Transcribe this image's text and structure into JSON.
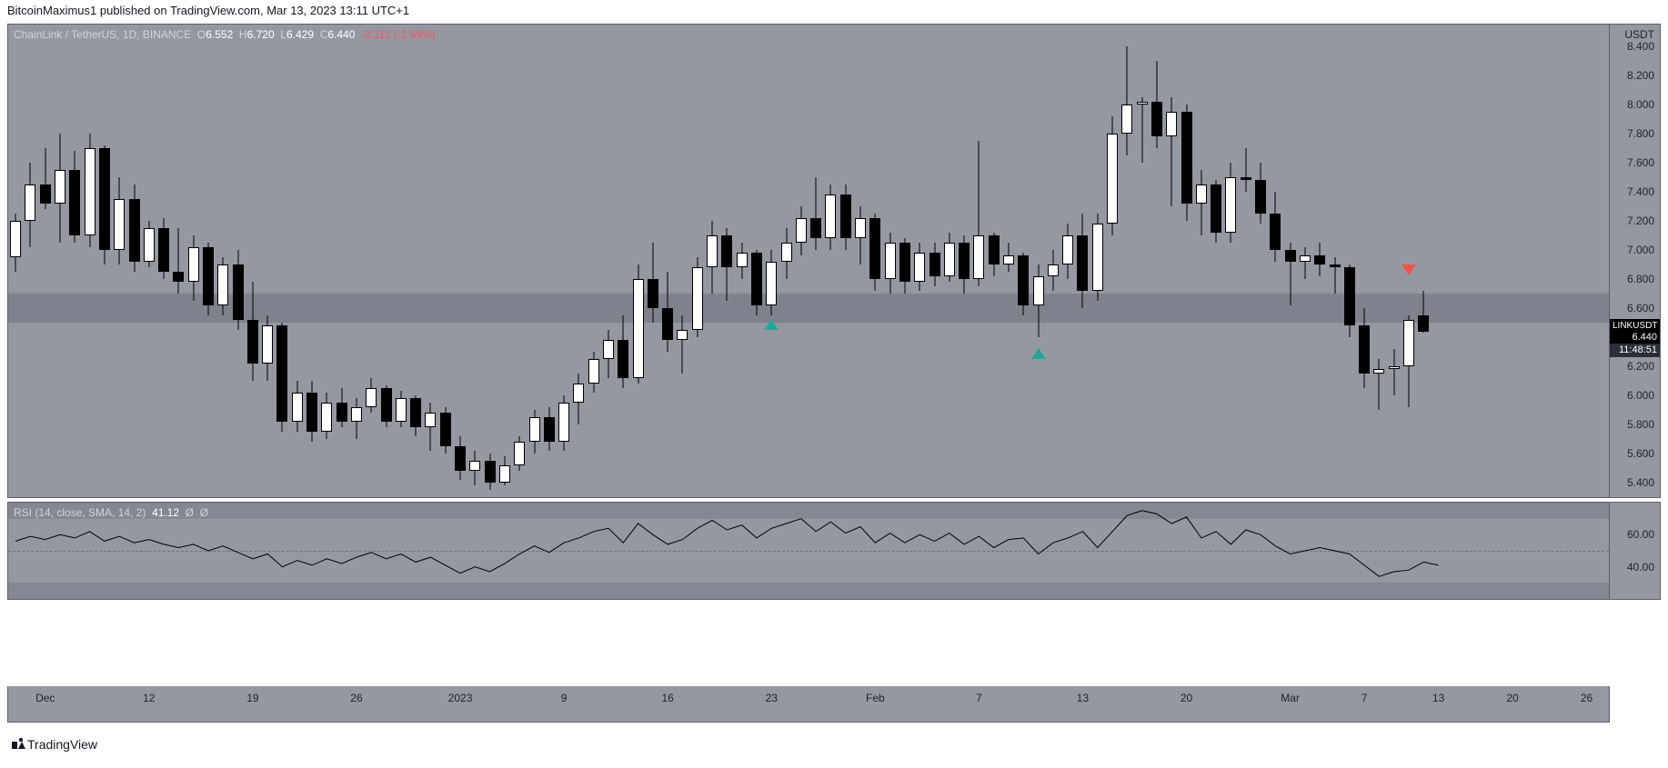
{
  "publish": {
    "text": "BitcoinMaximus1 published on TradingView.com, Mar 13, 2023 13:11 UTC+1"
  },
  "footer": {
    "brand": "TradingView"
  },
  "price_chart": {
    "type": "candlestick",
    "legend": {
      "symbol": "ChainLink / TetherUS, 1D, BINANCE",
      "o_label": "O",
      "o": "6.552",
      "h_label": "H",
      "h": "6.720",
      "l_label": "L",
      "l": "6.429",
      "c_label": "C",
      "c": "6.440",
      "change": "-0.111 (-1.69%)"
    },
    "y_unit": "USDT",
    "ymin": 5.3,
    "ymax": 8.55,
    "yticks": [
      8.4,
      8.2,
      8.0,
      7.8,
      7.6,
      7.4,
      7.2,
      7.0,
      6.8,
      6.6,
      6.4,
      6.2,
      6.0,
      5.8,
      5.6,
      5.4
    ],
    "sr_band": {
      "low": 6.5,
      "high": 6.7
    },
    "last_tag": {
      "symbol": "LINKUSDT",
      "price": "6.440",
      "countdown": "11:48:51",
      "at": 6.44
    },
    "xticks": [
      {
        "i": 2,
        "label": "Dec"
      },
      {
        "i": 9,
        "label": "12"
      },
      {
        "i": 16,
        "label": "19"
      },
      {
        "i": 23,
        "label": "26"
      },
      {
        "i": 30,
        "label": "2023"
      },
      {
        "i": 37,
        "label": "9"
      },
      {
        "i": 44,
        "label": "16"
      },
      {
        "i": 51,
        "label": "23"
      },
      {
        "i": 58,
        "label": "Feb"
      },
      {
        "i": 65,
        "label": "7"
      },
      {
        "i": 72,
        "label": "13"
      },
      {
        "i": 79,
        "label": "20"
      },
      {
        "i": 86,
        "label": "Mar"
      },
      {
        "i": 91,
        "label": "7"
      },
      {
        "i": 96,
        "label": "13"
      },
      {
        "i": 101,
        "label": "20"
      },
      {
        "i": 106,
        "label": "26"
      }
    ],
    "n_slots": 108,
    "candles": [
      {
        "o": 6.95,
        "h": 7.25,
        "l": 6.85,
        "c": 7.2
      },
      {
        "o": 7.2,
        "h": 7.6,
        "l": 7.02,
        "c": 7.45
      },
      {
        "o": 7.45,
        "h": 7.7,
        "l": 7.28,
        "c": 7.32
      },
      {
        "o": 7.32,
        "h": 7.8,
        "l": 7.05,
        "c": 7.55
      },
      {
        "o": 7.55,
        "h": 7.68,
        "l": 7.05,
        "c": 7.1
      },
      {
        "o": 7.1,
        "h": 7.8,
        "l": 7.02,
        "c": 7.7
      },
      {
        "o": 7.7,
        "h": 7.72,
        "l": 6.9,
        "c": 7.0
      },
      {
        "o": 7.0,
        "h": 7.5,
        "l": 6.9,
        "c": 7.35
      },
      {
        "o": 7.35,
        "h": 7.45,
        "l": 6.85,
        "c": 6.92
      },
      {
        "o": 6.92,
        "h": 7.2,
        "l": 6.88,
        "c": 7.15
      },
      {
        "o": 7.15,
        "h": 7.22,
        "l": 6.8,
        "c": 6.85
      },
      {
        "o": 6.85,
        "h": 7.15,
        "l": 6.7,
        "c": 6.78
      },
      {
        "o": 6.78,
        "h": 7.1,
        "l": 6.65,
        "c": 7.02
      },
      {
        "o": 7.02,
        "h": 7.05,
        "l": 6.55,
        "c": 6.62
      },
      {
        "o": 6.62,
        "h": 6.95,
        "l": 6.55,
        "c": 6.9
      },
      {
        "o": 6.9,
        "h": 7.0,
        "l": 6.45,
        "c": 6.52
      },
      {
        "o": 6.52,
        "h": 6.78,
        "l": 6.1,
        "c": 6.22
      },
      {
        "o": 6.22,
        "h": 6.55,
        "l": 6.1,
        "c": 6.48
      },
      {
        "o": 6.48,
        "h": 6.5,
        "l": 5.75,
        "c": 5.82
      },
      {
        "o": 5.82,
        "h": 6.1,
        "l": 5.75,
        "c": 6.02
      },
      {
        "o": 6.02,
        "h": 6.1,
        "l": 5.68,
        "c": 5.75
      },
      {
        "o": 5.75,
        "h": 6.02,
        "l": 5.7,
        "c": 5.95
      },
      {
        "o": 5.95,
        "h": 6.05,
        "l": 5.78,
        "c": 5.82
      },
      {
        "o": 5.82,
        "h": 5.98,
        "l": 5.7,
        "c": 5.92
      },
      {
        "o": 5.92,
        "h": 6.12,
        "l": 5.88,
        "c": 6.05
      },
      {
        "o": 6.05,
        "h": 6.07,
        "l": 5.78,
        "c": 5.82
      },
      {
        "o": 5.82,
        "h": 6.03,
        "l": 5.78,
        "c": 5.98
      },
      {
        "o": 5.98,
        "h": 6.0,
        "l": 5.72,
        "c": 5.78
      },
      {
        "o": 5.78,
        "h": 5.95,
        "l": 5.62,
        "c": 5.88
      },
      {
        "o": 5.88,
        "h": 5.92,
        "l": 5.6,
        "c": 5.65
      },
      {
        "o": 5.65,
        "h": 5.72,
        "l": 5.42,
        "c": 5.48
      },
      {
        "o": 5.48,
        "h": 5.62,
        "l": 5.38,
        "c": 5.55
      },
      {
        "o": 5.55,
        "h": 5.6,
        "l": 5.35,
        "c": 5.4
      },
      {
        "o": 5.4,
        "h": 5.58,
        "l": 5.38,
        "c": 5.52
      },
      {
        "o": 5.52,
        "h": 5.72,
        "l": 5.48,
        "c": 5.68
      },
      {
        "o": 5.68,
        "h": 5.9,
        "l": 5.6,
        "c": 5.85
      },
      {
        "o": 5.85,
        "h": 5.92,
        "l": 5.62,
        "c": 5.68
      },
      {
        "o": 5.68,
        "h": 6.0,
        "l": 5.62,
        "c": 5.95
      },
      {
        "o": 5.95,
        "h": 6.15,
        "l": 5.8,
        "c": 6.08
      },
      {
        "o": 6.08,
        "h": 6.3,
        "l": 6.02,
        "c": 6.25
      },
      {
        "o": 6.25,
        "h": 6.45,
        "l": 6.12,
        "c": 6.38
      },
      {
        "o": 6.38,
        "h": 6.55,
        "l": 6.05,
        "c": 6.12
      },
      {
        "o": 6.12,
        "h": 6.9,
        "l": 6.08,
        "c": 6.8
      },
      {
        "o": 6.8,
        "h": 7.05,
        "l": 6.5,
        "c": 6.6
      },
      {
        "o": 6.6,
        "h": 6.85,
        "l": 6.3,
        "c": 6.38
      },
      {
        "o": 6.38,
        "h": 6.55,
        "l": 6.15,
        "c": 6.45
      },
      {
        "o": 6.45,
        "h": 6.95,
        "l": 6.4,
        "c": 6.88
      },
      {
        "o": 6.88,
        "h": 7.2,
        "l": 6.7,
        "c": 7.1
      },
      {
        "o": 7.1,
        "h": 7.15,
        "l": 6.65,
        "c": 6.88
      },
      {
        "o": 6.88,
        "h": 7.05,
        "l": 6.8,
        "c": 6.98
      },
      {
        "o": 6.98,
        "h": 7.0,
        "l": 6.55,
        "c": 6.62
      },
      {
        "o": 6.62,
        "h": 7.0,
        "l": 6.55,
        "c": 6.92
      },
      {
        "o": 6.92,
        "h": 7.15,
        "l": 6.8,
        "c": 7.05
      },
      {
        "o": 7.05,
        "h": 7.3,
        "l": 6.96,
        "c": 7.22
      },
      {
        "o": 7.22,
        "h": 7.5,
        "l": 7.0,
        "c": 7.08
      },
      {
        "o": 7.08,
        "h": 7.45,
        "l": 7.0,
        "c": 7.38
      },
      {
        "o": 7.38,
        "h": 7.45,
        "l": 7.0,
        "c": 7.08
      },
      {
        "o": 7.08,
        "h": 7.3,
        "l": 6.9,
        "c": 7.22
      },
      {
        "o": 7.22,
        "h": 7.25,
        "l": 6.72,
        "c": 6.8
      },
      {
        "o": 6.8,
        "h": 7.12,
        "l": 6.7,
        "c": 7.05
      },
      {
        "o": 7.05,
        "h": 7.08,
        "l": 6.7,
        "c": 6.78
      },
      {
        "o": 6.78,
        "h": 7.05,
        "l": 6.72,
        "c": 6.98
      },
      {
        "o": 6.98,
        "h": 7.05,
        "l": 6.75,
        "c": 6.82
      },
      {
        "o": 6.82,
        "h": 7.12,
        "l": 6.78,
        "c": 7.05
      },
      {
        "o": 7.05,
        "h": 7.1,
        "l": 6.7,
        "c": 6.8
      },
      {
        "o": 6.8,
        "h": 7.75,
        "l": 6.75,
        "c": 7.1
      },
      {
        "o": 7.1,
        "h": 7.12,
        "l": 6.82,
        "c": 6.9
      },
      {
        "o": 6.9,
        "h": 7.05,
        "l": 6.85,
        "c": 6.96
      },
      {
        "o": 6.96,
        "h": 6.98,
        "l": 6.55,
        "c": 6.62
      },
      {
        "o": 6.62,
        "h": 6.9,
        "l": 6.4,
        "c": 6.82
      },
      {
        "o": 6.82,
        "h": 7.0,
        "l": 6.72,
        "c": 6.9
      },
      {
        "o": 6.9,
        "h": 7.18,
        "l": 6.8,
        "c": 7.1
      },
      {
        "o": 7.1,
        "h": 7.25,
        "l": 6.6,
        "c": 6.72
      },
      {
        "o": 6.72,
        "h": 7.25,
        "l": 6.65,
        "c": 7.18
      },
      {
        "o": 7.18,
        "h": 7.92,
        "l": 7.1,
        "c": 7.8
      },
      {
        "o": 7.8,
        "h": 8.4,
        "l": 7.65,
        "c": 8.0
      },
      {
        "o": 8.0,
        "h": 8.05,
        "l": 7.6,
        "c": 8.02
      },
      {
        "o": 8.02,
        "h": 8.3,
        "l": 7.7,
        "c": 7.78
      },
      {
        "o": 7.78,
        "h": 8.05,
        "l": 7.3,
        "c": 7.95
      },
      {
        "o": 7.95,
        "h": 8.0,
        "l": 7.2,
        "c": 7.32
      },
      {
        "o": 7.32,
        "h": 7.55,
        "l": 7.1,
        "c": 7.45
      },
      {
        "o": 7.45,
        "h": 7.48,
        "l": 7.05,
        "c": 7.12
      },
      {
        "o": 7.12,
        "h": 7.6,
        "l": 7.05,
        "c": 7.5
      },
      {
        "o": 7.5,
        "h": 7.7,
        "l": 7.4,
        "c": 7.48
      },
      {
        "o": 7.48,
        "h": 7.6,
        "l": 7.18,
        "c": 7.25
      },
      {
        "o": 7.25,
        "h": 7.4,
        "l": 6.92,
        "c": 7.0
      },
      {
        "o": 7.0,
        "h": 7.05,
        "l": 6.62,
        "c": 6.92
      },
      {
        "o": 6.92,
        "h": 7.02,
        "l": 6.8,
        "c": 6.96
      },
      {
        "o": 6.96,
        "h": 7.05,
        "l": 6.82,
        "c": 6.9
      },
      {
        "o": 6.9,
        "h": 6.95,
        "l": 6.7,
        "c": 6.88
      },
      {
        "o": 6.88,
        "h": 6.9,
        "l": 6.4,
        "c": 6.48
      },
      {
        "o": 6.48,
        "h": 6.6,
        "l": 6.05,
        "c": 6.15
      },
      {
        "o": 6.15,
        "h": 6.25,
        "l": 5.9,
        "c": 6.18
      },
      {
        "o": 6.18,
        "h": 6.32,
        "l": 6.0,
        "c": 6.2
      },
      {
        "o": 6.2,
        "h": 6.55,
        "l": 5.92,
        "c": 6.52
      },
      {
        "o": 6.552,
        "h": 6.72,
        "l": 6.429,
        "c": 6.44
      }
    ],
    "markers": [
      {
        "i": 51,
        "y": 6.45,
        "dir": "up"
      },
      {
        "i": 69,
        "y": 6.25,
        "dir": "up"
      },
      {
        "i": 94,
        "y": 6.9,
        "dir": "dn"
      }
    ]
  },
  "rsi_chart": {
    "type": "line",
    "legend": {
      "name": "RSI (14, close, SMA, 14, 2)",
      "value": "41.12",
      "phi1": "Ø",
      "phi2": "Ø"
    },
    "ymin": 20,
    "ymax": 80,
    "yticks": [
      60.0,
      40.0
    ],
    "bands": {
      "upper": 70,
      "lower": 30,
      "mid": 50
    },
    "values": [
      56,
      59,
      57,
      60,
      58,
      62,
      56,
      59,
      55,
      57,
      54,
      52,
      54,
      50,
      53,
      49,
      45,
      48,
      40,
      44,
      41,
      45,
      42,
      46,
      49,
      45,
      48,
      43,
      46,
      41,
      36,
      40,
      37,
      42,
      48,
      53,
      49,
      55,
      58,
      62,
      64,
      55,
      67,
      60,
      54,
      57,
      64,
      69,
      63,
      66,
      58,
      64,
      67,
      70,
      62,
      68,
      61,
      65,
      55,
      61,
      55,
      60,
      56,
      61,
      54,
      59,
      52,
      57,
      58,
      48,
      55,
      58,
      62,
      52,
      62,
      72,
      75,
      73,
      67,
      71,
      58,
      62,
      54,
      63,
      60,
      53,
      48,
      50,
      52,
      50,
      48,
      41,
      34,
      37,
      38,
      43,
      41
    ]
  },
  "colors": {
    "panel_bg": "#9598a1",
    "border": "#5d606b",
    "text": "#1e222d",
    "legend_text": "#d1d4dc",
    "value_text": "#ffffff",
    "neg": "#f7525f",
    "up_marker": "#26a69a",
    "dn_marker": "#ef5350"
  }
}
